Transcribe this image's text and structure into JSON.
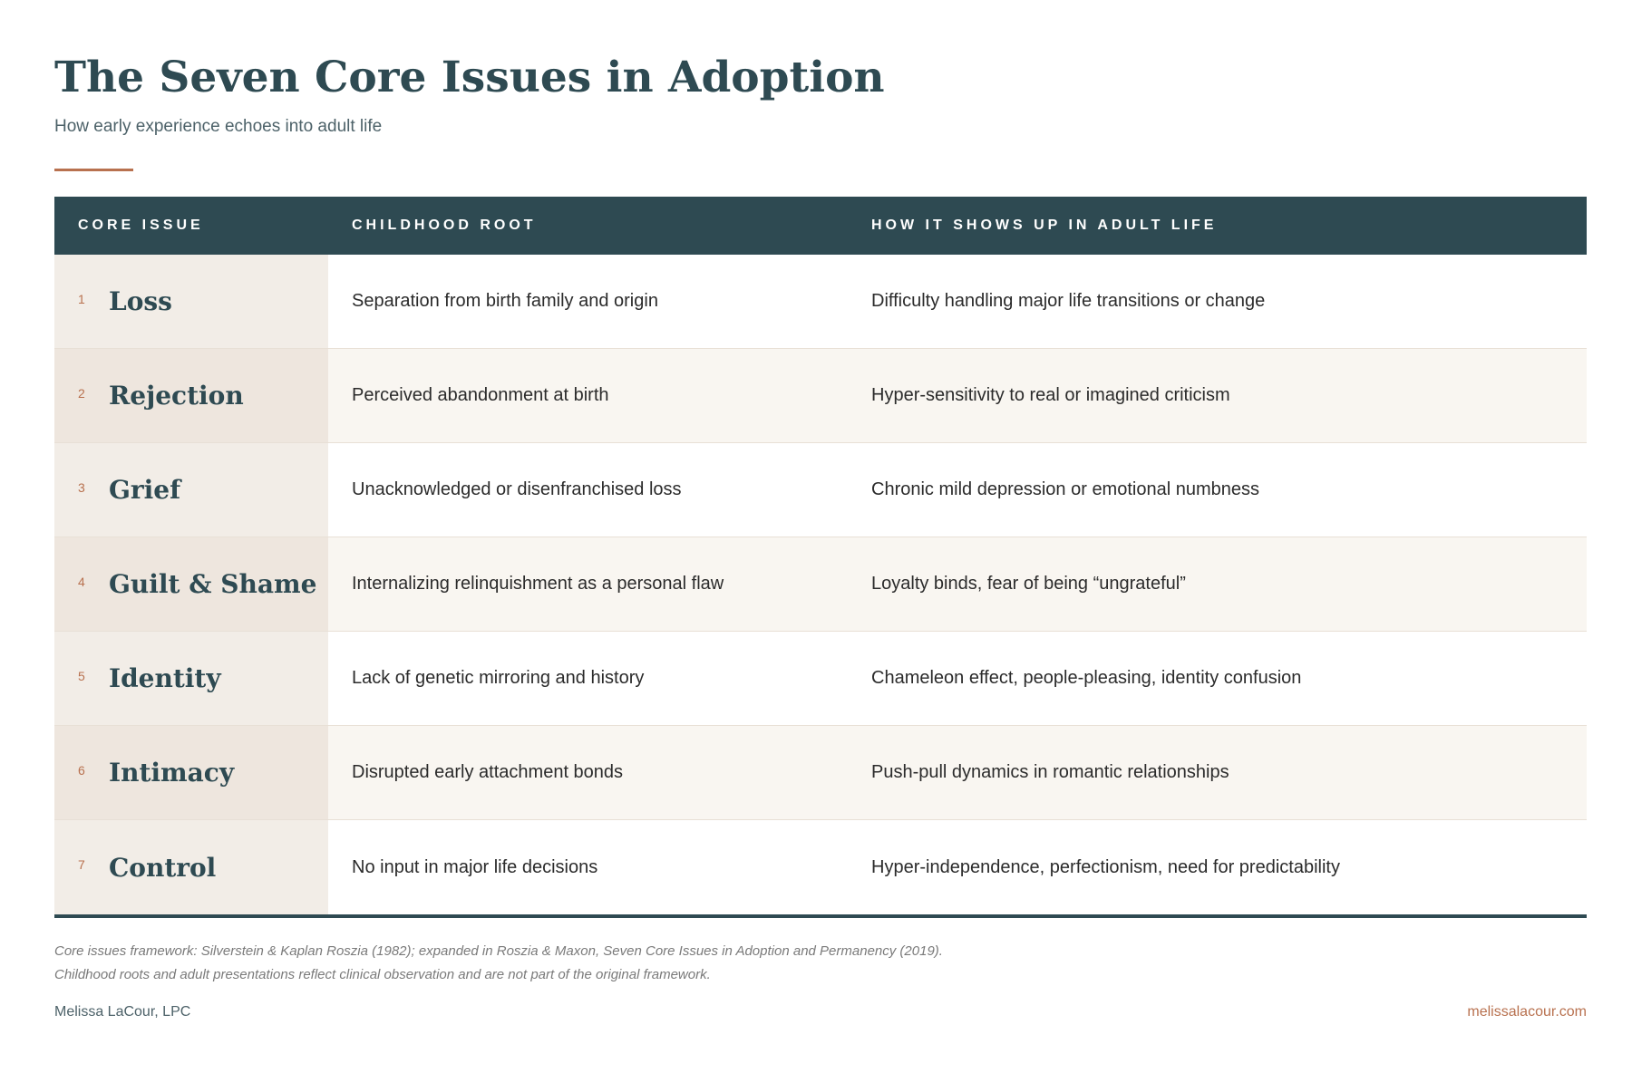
{
  "header": {
    "title": "The Seven Core Issues in Adoption",
    "subtitle": "How early experience echoes into adult life"
  },
  "table": {
    "columns": [
      "CORE ISSUE",
      "CHILDHOOD ROOT",
      "HOW IT SHOWS UP IN ADULT LIFE"
    ],
    "rows": [
      {
        "num": "1",
        "issue": "Loss",
        "root": "Separation from birth family and origin",
        "adult": "Difficulty handling major life transitions or change"
      },
      {
        "num": "2",
        "issue": "Rejection",
        "root": "Perceived abandonment at birth",
        "adult": "Hyper-sensitivity to real or imagined criticism"
      },
      {
        "num": "3",
        "issue": "Grief",
        "root": "Unacknowledged or disenfranchised loss",
        "adult": "Chronic mild depression or emotional numbness"
      },
      {
        "num": "4",
        "issue": "Guilt & Shame",
        "root": "Internalizing relinquishment as a personal flaw",
        "adult": "Loyalty binds, fear of being “ungrateful”"
      },
      {
        "num": "5",
        "issue": "Identity",
        "root": "Lack of genetic mirroring and history",
        "adult": "Chameleon effect, people-pleasing, identity confusion"
      },
      {
        "num": "6",
        "issue": "Intimacy",
        "root": "Disrupted early attachment bonds",
        "adult": "Push-pull dynamics in romantic relationships"
      },
      {
        "num": "7",
        "issue": "Control",
        "root": "No input in major life decisions",
        "adult": "Hyper-independence, perfectionism, need for predictability"
      }
    ]
  },
  "notes": {
    "line1": "Core issues framework: Silverstein & Kaplan Roszia (1982); expanded in Roszia & Maxon, Seven Core Issues in Adoption and Permanency (2019).",
    "line2": "Childhood roots and adult presentations reflect clinical observation and are not part of the original framework."
  },
  "footer": {
    "author": "Melissa LaCour, LPC",
    "website": "melissalacour.com"
  },
  "colors": {
    "primary": "#2e4a52",
    "accent": "#b8714f",
    "row_alt": "#f9f6f1",
    "issue_col": "#f2ede7"
  }
}
